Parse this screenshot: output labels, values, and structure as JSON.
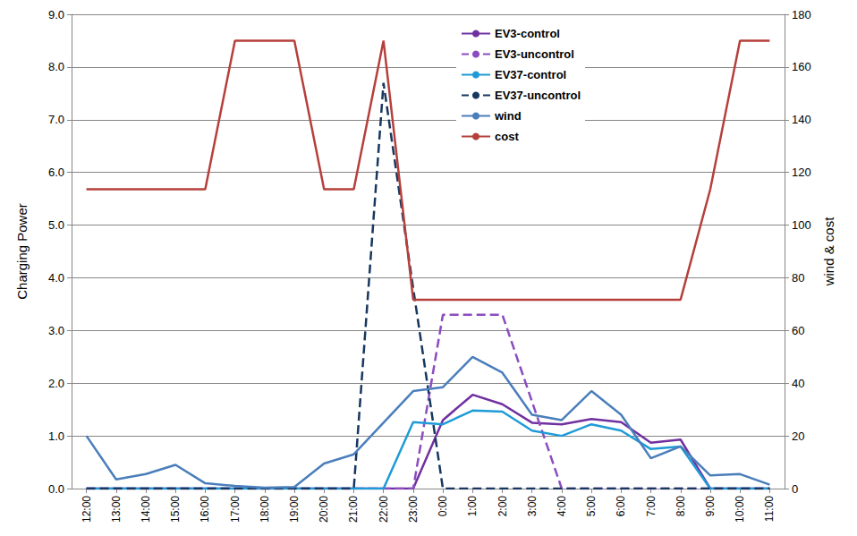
{
  "chart_data": {
    "type": "line",
    "categories": [
      "12:00",
      "13:00",
      "14:00",
      "15:00",
      "16:00",
      "17:00",
      "18:00",
      "19:00",
      "20:00",
      "21:00",
      "22:00",
      "23:00",
      "0:00",
      "1:00",
      "2:00",
      "3:00",
      "4:00",
      "5:00",
      "6:00",
      "7:00",
      "8:00",
      "9:00",
      "10:00",
      "11:00"
    ],
    "y_label": "Charging Power",
    "y2_label": "wind & cost",
    "ylim": [
      0,
      9
    ],
    "yticks": [
      {
        "value": 0,
        "label": "0.0"
      },
      {
        "value": 1,
        "label": "1.0"
      },
      {
        "value": 2,
        "label": "2.0"
      },
      {
        "value": 3,
        "label": "3.0"
      },
      {
        "value": 4,
        "label": "4.0"
      },
      {
        "value": 5,
        "label": "5.0"
      },
      {
        "value": 6,
        "label": "6.0"
      },
      {
        "value": 7,
        "label": "7.0"
      },
      {
        "value": 8,
        "label": "8.0"
      },
      {
        "value": 9,
        "label": "9.0"
      }
    ],
    "y2lim": [
      0,
      180
    ],
    "y2ticks": [
      0,
      20,
      40,
      60,
      80,
      100,
      120,
      140,
      160,
      180
    ],
    "grid": true,
    "legend": "top",
    "series": [
      {
        "name": "EV3-control",
        "color": "#7030a0",
        "line_style": "solid",
        "values": [
          0,
          0,
          0,
          0,
          0,
          0,
          0,
          0,
          0,
          0,
          0,
          0,
          1.3,
          1.78,
          1.6,
          1.25,
          1.22,
          1.32,
          1.26,
          0.87,
          0.93,
          0,
          0,
          0
        ]
      },
      {
        "name": "EV3-uncontrol",
        "color": "#8b4cc0",
        "line_style": "dashed",
        "values": [
          0,
          0,
          0,
          0,
          0,
          0,
          0,
          0,
          0,
          0,
          0,
          0,
          3.3,
          3.3,
          3.3,
          1.65,
          0,
          0,
          0,
          0,
          0,
          0,
          0,
          0
        ]
      },
      {
        "name": "EV37-control",
        "color": "#1e9bd7",
        "line_style": "solid",
        "values": [
          0,
          0,
          0,
          0,
          0,
          0,
          0,
          0,
          0,
          0,
          0,
          1.26,
          1.22,
          1.48,
          1.46,
          1.1,
          1.0,
          1.22,
          1.1,
          0.75,
          0.8,
          0,
          0,
          0
        ]
      },
      {
        "name": "EV37-uncontrol",
        "color": "#17375e",
        "line_style": "dashed",
        "values": [
          0,
          0,
          0,
          0,
          0,
          0,
          0,
          0,
          0,
          0,
          7.7,
          3.8,
          0,
          0,
          0,
          0,
          0,
          0,
          0,
          0,
          0,
          0,
          0,
          0
        ]
      },
      {
        "name": "wind",
        "color": "#4a7ebb",
        "line_style": "solid",
        "axis": "y2",
        "values": [
          20,
          3.5,
          5.5,
          9,
          2,
          1,
          0.3,
          0.6,
          9.5,
          13,
          25,
          37,
          38.5,
          50,
          44,
          28,
          26,
          37,
          28,
          11.5,
          16,
          5,
          5.5,
          1.5
        ]
      },
      {
        "name": "cost",
        "color": "#b5403b",
        "line_style": "solid",
        "axis": "y2",
        "values": [
          113.6,
          113.6,
          113.6,
          113.6,
          113.6,
          170,
          170,
          170,
          113.6,
          113.6,
          170,
          71.7,
          71.7,
          71.7,
          71.7,
          71.7,
          71.7,
          71.7,
          71.7,
          71.7,
          71.7,
          113.6,
          170,
          170
        ]
      }
    ]
  }
}
